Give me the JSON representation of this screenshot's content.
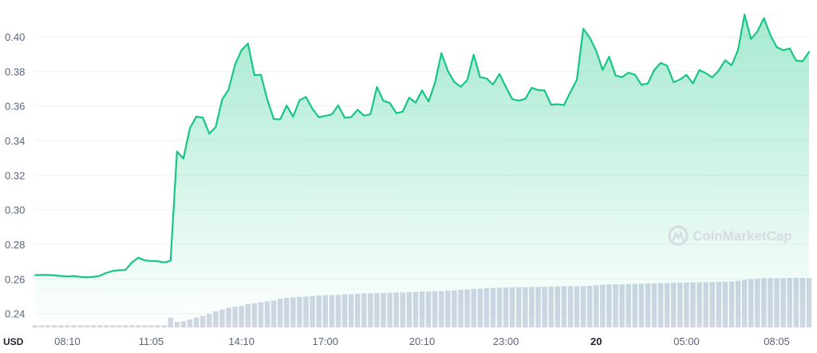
{
  "chart_data": {
    "type": "area",
    "y_unit_label": "USD",
    "watermark": "CoinMarketCap",
    "ylim": [
      0.232,
      0.412
    ],
    "y_ticks": [
      {
        "value": 0.24,
        "label": "0.24"
      },
      {
        "value": 0.26,
        "label": "0.26"
      },
      {
        "value": 0.28,
        "label": "0.28"
      },
      {
        "value": 0.3,
        "label": "0.30"
      },
      {
        "value": 0.32,
        "label": "0.32"
      },
      {
        "value": 0.34,
        "label": "0.34"
      },
      {
        "value": 0.36,
        "label": "0.36"
      },
      {
        "value": 0.38,
        "label": "0.38"
      },
      {
        "value": 0.4,
        "label": "0.40"
      }
    ],
    "x_ticks": [
      {
        "label": "08:10",
        "index": 5,
        "bold": false
      },
      {
        "label": "11:05",
        "index": 18,
        "bold": false
      },
      {
        "label": "14:10",
        "index": 32,
        "bold": false
      },
      {
        "label": "17:00",
        "index": 45,
        "bold": false
      },
      {
        "label": "20:10",
        "index": 60,
        "bold": false
      },
      {
        "label": "23:00",
        "index": 73,
        "bold": false
      },
      {
        "label": "20",
        "index": 87,
        "bold": true
      },
      {
        "label": "05:00",
        "index": 101,
        "bold": false
      },
      {
        "label": "08:05",
        "index": 115,
        "bold": false
      }
    ],
    "colors": {
      "line": "#16c784",
      "area_top": "#16c784",
      "volume": "#cfd6e4",
      "grid": "#eff2f5",
      "watermark": "#d6dbe3"
    },
    "series": [
      {
        "values": [
          0.2622,
          0.2624,
          0.2623,
          0.2621,
          0.2617,
          0.2615,
          0.2617,
          0.2612,
          0.261,
          0.2612,
          0.2618,
          0.2635,
          0.2646,
          0.2651,
          0.2652,
          0.2695,
          0.2723,
          0.2708,
          0.2704,
          0.2703,
          0.2696,
          0.2705,
          0.3337,
          0.3296,
          0.3472,
          0.3538,
          0.3533,
          0.344,
          0.3478,
          0.3637,
          0.3695,
          0.3838,
          0.3922,
          0.3961,
          0.3778,
          0.3781,
          0.3637,
          0.3525,
          0.3522,
          0.3602,
          0.3538,
          0.3633,
          0.3652,
          0.3583,
          0.3535,
          0.3543,
          0.3551,
          0.3603,
          0.3532,
          0.3535,
          0.3578,
          0.3544,
          0.3552,
          0.371,
          0.363,
          0.3617,
          0.3558,
          0.3567,
          0.3648,
          0.3619,
          0.369,
          0.3625,
          0.3733,
          0.3905,
          0.3802,
          0.3738,
          0.3711,
          0.3749,
          0.3896,
          0.3766,
          0.3759,
          0.3724,
          0.3785,
          0.371,
          0.3639,
          0.3631,
          0.3641,
          0.3705,
          0.3692,
          0.369,
          0.3607,
          0.361,
          0.3605,
          0.368,
          0.3752,
          0.4046,
          0.3995,
          0.3919,
          0.3808,
          0.3885,
          0.3776,
          0.3766,
          0.3792,
          0.3781,
          0.3723,
          0.3729,
          0.3808,
          0.3849,
          0.3832,
          0.3737,
          0.3753,
          0.378,
          0.373,
          0.3808,
          0.3789,
          0.3765,
          0.3805,
          0.3864,
          0.3835,
          0.3924,
          0.4128,
          0.3987,
          0.4031,
          0.4107,
          0.401,
          0.394,
          0.3922,
          0.3932,
          0.3862,
          0.3858,
          0.3912
        ]
      }
    ],
    "volume": [
      0.012,
      0.012,
      0.012,
      0.012,
      0.012,
      0.012,
      0.012,
      0.012,
      0.012,
      0.012,
      0.012,
      0.012,
      0.012,
      0.012,
      0.012,
      0.012,
      0.012,
      0.012,
      0.012,
      0.012,
      0.012,
      0.055,
      0.03,
      0.035,
      0.045,
      0.055,
      0.065,
      0.075,
      0.09,
      0.1,
      0.11,
      0.115,
      0.12,
      0.13,
      0.135,
      0.14,
      0.145,
      0.15,
      0.16,
      0.165,
      0.168,
      0.17,
      0.172,
      0.175,
      0.178,
      0.18,
      0.18,
      0.182,
      0.185,
      0.185,
      0.188,
      0.19,
      0.19,
      0.19,
      0.192,
      0.193,
      0.195,
      0.195,
      0.197,
      0.198,
      0.2,
      0.2,
      0.202,
      0.203,
      0.205,
      0.207,
      0.21,
      0.212,
      0.214,
      0.215,
      0.218,
      0.22,
      0.222,
      0.223,
      0.224,
      0.225,
      0.225,
      0.226,
      0.226,
      0.227,
      0.228,
      0.228,
      0.229,
      0.229,
      0.23,
      0.23,
      0.232,
      0.235,
      0.238,
      0.24,
      0.24,
      0.24,
      0.242,
      0.243,
      0.244,
      0.245,
      0.245,
      0.246,
      0.247,
      0.248,
      0.249,
      0.25,
      0.251,
      0.252,
      0.252,
      0.253,
      0.254,
      0.255,
      0.256,
      0.26,
      0.265,
      0.27,
      0.272,
      0.275,
      0.275,
      0.275,
      0.275,
      0.276,
      0.276,
      0.276,
      0.276
    ]
  }
}
